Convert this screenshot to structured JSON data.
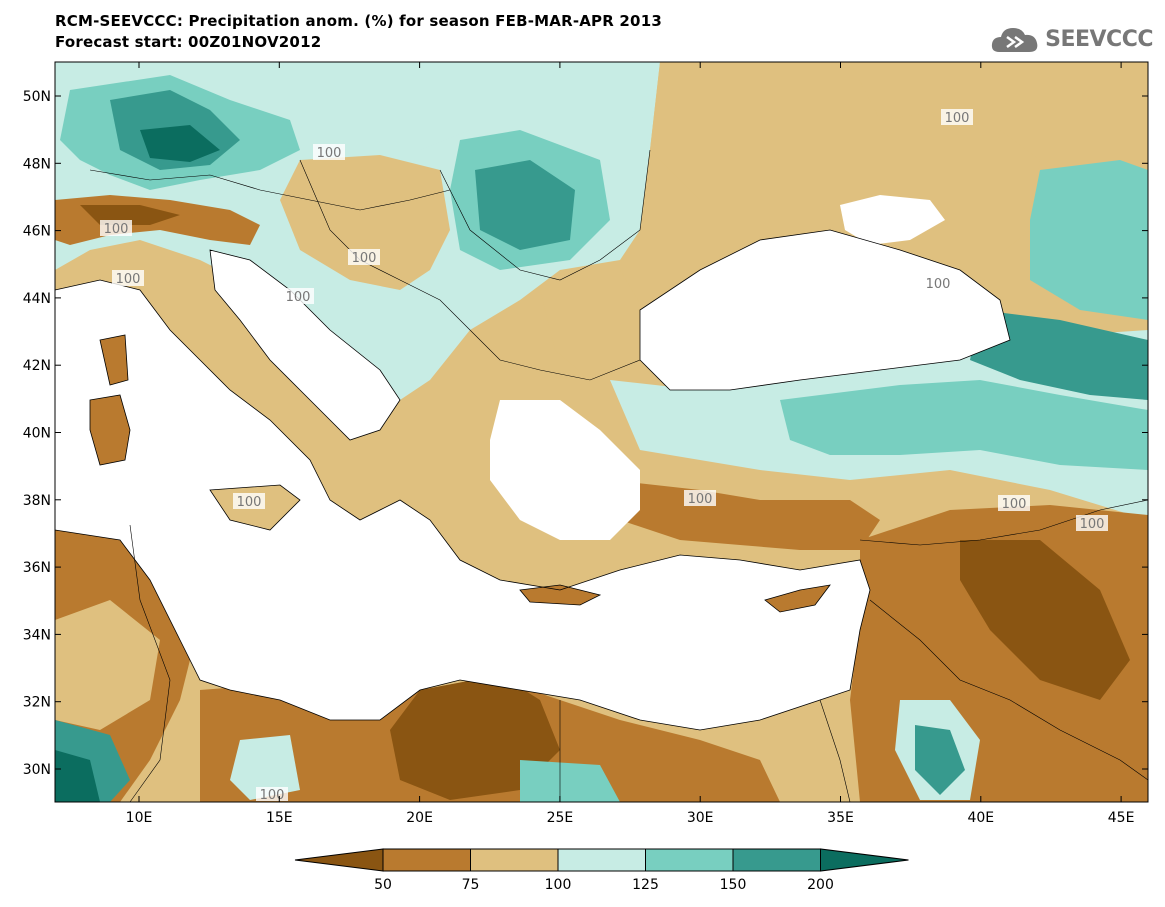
{
  "header": {
    "title": "RCM-SEEVCCC: Precipitation anom. (%) for season FEB-MAR-APR 2013",
    "subtitle": "Forecast start: 00Z01NOV2012",
    "logo_text": "SEEVCCC",
    "logo_icon": "cloud-icon"
  },
  "map": {
    "lat_ticks": [
      "50N",
      "48N",
      "46N",
      "44N",
      "42N",
      "40N",
      "38N",
      "36N",
      "34N",
      "32N",
      "30N"
    ],
    "lon_ticks": [
      "10E",
      "15E",
      "20E",
      "25E",
      "30E",
      "35E",
      "40E",
      "45E"
    ],
    "contour_labels": [
      "100",
      "100",
      "100",
      "100",
      "100",
      "100",
      "100",
      "100",
      "100",
      "100",
      "100",
      "100"
    ]
  },
  "legend": {
    "labels": [
      "50",
      "75",
      "100",
      "125",
      "150",
      "200"
    ],
    "colors": [
      "#8a5512",
      "#b97a2f",
      "#dfc07f",
      "#c7ece4",
      "#78cfc0",
      "#379a8e",
      "#0b6d5f"
    ]
  }
}
